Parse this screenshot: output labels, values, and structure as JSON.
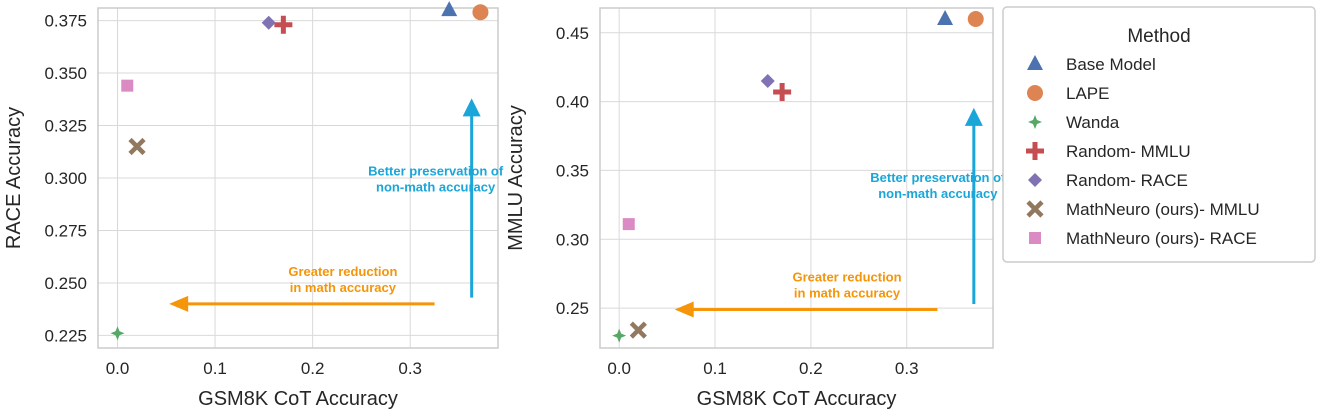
{
  "colors": {
    "base_model": "#4c72b0",
    "lape": "#dd8452",
    "wanda": "#55a868",
    "random_mmlu": "#c44e52",
    "random_race": "#8172b3",
    "mathneuro_mmlu": "#937860",
    "mathneuro_race": "#da8bc3",
    "annotation_blue": "#1aa6d8",
    "annotation_orange": "#f5950a",
    "grid": "#d9d9d9",
    "frame": "#cccccc"
  },
  "chart_data": [
    {
      "type": "scatter",
      "xlabel": "GSM8K CoT Accuracy",
      "ylabel": "RACE Accuracy",
      "xlim": [
        -0.02,
        0.39
      ],
      "ylim": [
        0.219,
        0.381
      ],
      "xticks": [
        0.0,
        0.1,
        0.2,
        0.3
      ],
      "xtick_labels": [
        "0.0",
        "0.1",
        "0.2",
        "0.3"
      ],
      "yticks": [
        0.225,
        0.25,
        0.275,
        0.3,
        0.325,
        0.35,
        0.375
      ],
      "ytick_labels": [
        "0.225",
        "0.250",
        "0.275",
        "0.300",
        "0.325",
        "0.350",
        "0.375"
      ],
      "grid": true,
      "points": [
        {
          "method": "Base Model",
          "x": 0.34,
          "y": 0.38
        },
        {
          "method": "LAPE",
          "x": 0.372,
          "y": 0.379
        },
        {
          "method": "Wanda",
          "x": 0.0,
          "y": 0.226
        },
        {
          "method": "Random- MMLU",
          "x": 0.17,
          "y": 0.373
        },
        {
          "method": "Random- RACE",
          "x": 0.155,
          "y": 0.374
        },
        {
          "method": "MathNeuro (ours)- MMLU",
          "x": 0.02,
          "y": 0.315
        },
        {
          "method": "MathNeuro (ours)- RACE",
          "x": 0.01,
          "y": 0.344
        }
      ],
      "annotations": {
        "up": {
          "lines": [
            "Better preservation of",
            "non-math accuracy"
          ],
          "x": 0.363,
          "y_from": 0.243,
          "y_to": 0.337
        },
        "left": {
          "lines": [
            "Greater reduction",
            "in math accuracy"
          ],
          "y": 0.24,
          "x_from": 0.325,
          "x_to": 0.055
        }
      }
    },
    {
      "type": "scatter",
      "xlabel": "GSM8K CoT Accuracy",
      "ylabel": "MMLU Accuracy",
      "xlim": [
        -0.02,
        0.39
      ],
      "ylim": [
        0.221,
        0.468
      ],
      "xticks": [
        0.0,
        0.1,
        0.2,
        0.3
      ],
      "xtick_labels": [
        "0.0",
        "0.1",
        "0.2",
        "0.3"
      ],
      "yticks": [
        0.25,
        0.3,
        0.35,
        0.4,
        0.45
      ],
      "ytick_labels": [
        "0.25",
        "0.30",
        "0.35",
        "0.40",
        "0.45"
      ],
      "grid": true,
      "points": [
        {
          "method": "Base Model",
          "x": 0.34,
          "y": 0.46
        },
        {
          "method": "LAPE",
          "x": 0.372,
          "y": 0.46
        },
        {
          "method": "Wanda",
          "x": 0.0,
          "y": 0.23
        },
        {
          "method": "Random- MMLU",
          "x": 0.17,
          "y": 0.407
        },
        {
          "method": "Random- RACE",
          "x": 0.155,
          "y": 0.415
        },
        {
          "method": "MathNeuro (ours)- MMLU",
          "x": 0.02,
          "y": 0.234
        },
        {
          "method": "MathNeuro (ours)- RACE",
          "x": 0.01,
          "y": 0.311
        }
      ],
      "annotations": {
        "up": {
          "lines": [
            "Better preservation of",
            "non-math accuracy"
          ],
          "x": 0.37,
          "y_from": 0.253,
          "y_to": 0.394
        },
        "left": {
          "lines": [
            "Greater reduction",
            "in math accuracy"
          ],
          "y": 0.249,
          "x_from": 0.332,
          "x_to": 0.06
        }
      }
    }
  ],
  "legend": {
    "title": "Method",
    "placement": "right",
    "items": [
      {
        "label": "Base Model",
        "marker": "triangle",
        "color_key": "base_model"
      },
      {
        "label": "LAPE",
        "marker": "circle",
        "color_key": "lape"
      },
      {
        "label": "Wanda",
        "marker": "star4",
        "color_key": "wanda"
      },
      {
        "label": "Random- MMLU",
        "marker": "plus",
        "color_key": "random_mmlu"
      },
      {
        "label": "Random- RACE",
        "marker": "diamond",
        "color_key": "random_race"
      },
      {
        "label": "MathNeuro (ours)- MMLU",
        "marker": "x",
        "color_key": "mathneuro_mmlu"
      },
      {
        "label": "MathNeuro (ours)- RACE",
        "marker": "square",
        "color_key": "mathneuro_race"
      }
    ]
  }
}
